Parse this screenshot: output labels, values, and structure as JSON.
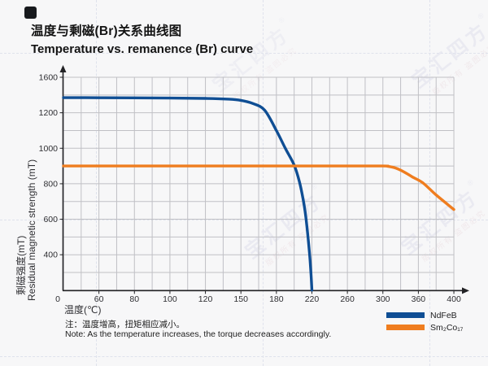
{
  "page": {
    "background": "#f7f7f8"
  },
  "header": {
    "title_cn": "温度与剩磁(Br)关系曲线图",
    "title_en": "Temperature vs. remanence (Br) curve"
  },
  "watermark": {
    "brand": "宝汇四方",
    "reg": "®",
    "notice": "版权所有 盗图必究"
  },
  "chart_data": {
    "type": "line",
    "xlabel": "温度(℃)",
    "ylabel_cn": "剩磁强度(mT)",
    "ylabel_en": "Residual magnetic strength (mT)",
    "x_ticks": [
      0,
      60,
      80,
      100,
      120,
      150,
      180,
      220,
      260,
      300,
      360,
      400
    ],
    "y_ticks_labeled": [
      1600,
      1200,
      1000,
      800,
      600,
      400
    ],
    "x_range": [
      0,
      400
    ],
    "y_range": [
      0,
      1600
    ],
    "grid": true,
    "legend_position": "bottom-right",
    "scale_note": "ticks evenly spaced on canvas; value steps non-uniform as drawn",
    "colors": {
      "grid": "#c0c0c5",
      "axis": "#222225",
      "tick_text": "#2e2e32"
    },
    "series": [
      {
        "name": "NdFeB",
        "color": "#0f4e94",
        "points": [
          [
            0,
            1370
          ],
          [
            30,
            1370
          ],
          [
            60,
            1369
          ],
          [
            90,
            1367
          ],
          [
            120,
            1362
          ],
          [
            140,
            1353
          ],
          [
            150,
            1340
          ],
          [
            160,
            1305
          ],
          [
            170,
            1230
          ],
          [
            180,
            1100
          ],
          [
            190,
            1000
          ],
          [
            200,
            905
          ],
          [
            206,
            810
          ],
          [
            210,
            715
          ],
          [
            213,
            620
          ],
          [
            216,
            480
          ],
          [
            218,
            330
          ],
          [
            219,
            180
          ],
          [
            220,
            0
          ]
        ]
      },
      {
        "name": "Sm₂Co₁₇",
        "color": "#ef7d1f",
        "points": [
          [
            0,
            900
          ],
          [
            60,
            900
          ],
          [
            120,
            900
          ],
          [
            180,
            900
          ],
          [
            240,
            900
          ],
          [
            300,
            900
          ],
          [
            308,
            898
          ],
          [
            320,
            890
          ],
          [
            335,
            868
          ],
          [
            350,
            838
          ],
          [
            365,
            805
          ],
          [
            380,
            737
          ],
          [
            400,
            655
          ]
        ]
      }
    ]
  },
  "note": {
    "line_cn": "注：温度增高，扭矩相应减小。",
    "line_en": "Note: As the temperature increases, the torque decreases accordingly."
  }
}
